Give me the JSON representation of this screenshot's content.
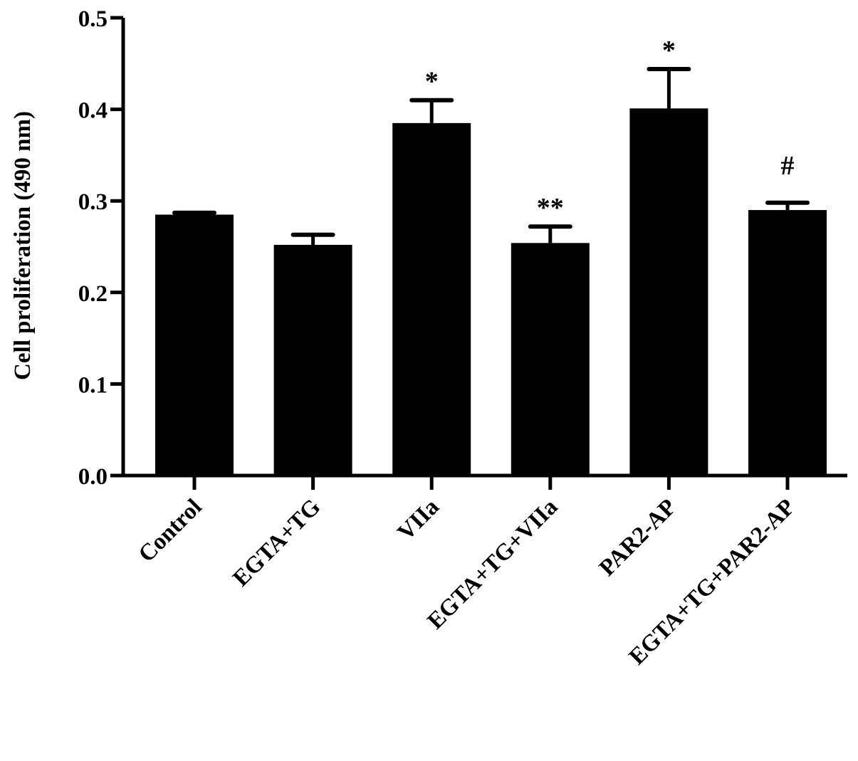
{
  "chart_data": {
    "type": "bar",
    "title": "",
    "xlabel": "",
    "ylabel": "Cell proliferation (490 nm)",
    "ylim": [
      0,
      0.5
    ],
    "yticks": [
      "0.0",
      "0.1",
      "0.2",
      "0.3",
      "0.4",
      "0.5"
    ],
    "grid": false,
    "categories": [
      "Control",
      "EGTA+TG",
      "VIIa",
      "EGTA+TG+VIIa",
      "PAR2-AP",
      "EGTA+TG+PAR2-AP"
    ],
    "values": [
      0.285,
      0.252,
      0.385,
      0.254,
      0.401,
      0.29
    ],
    "errors": [
      0.002,
      0.011,
      0.025,
      0.018,
      0.043,
      0.008
    ],
    "annotations": [
      "",
      "",
      "*",
      "**",
      "*",
      "#"
    ],
    "bar_color": "#000000"
  }
}
